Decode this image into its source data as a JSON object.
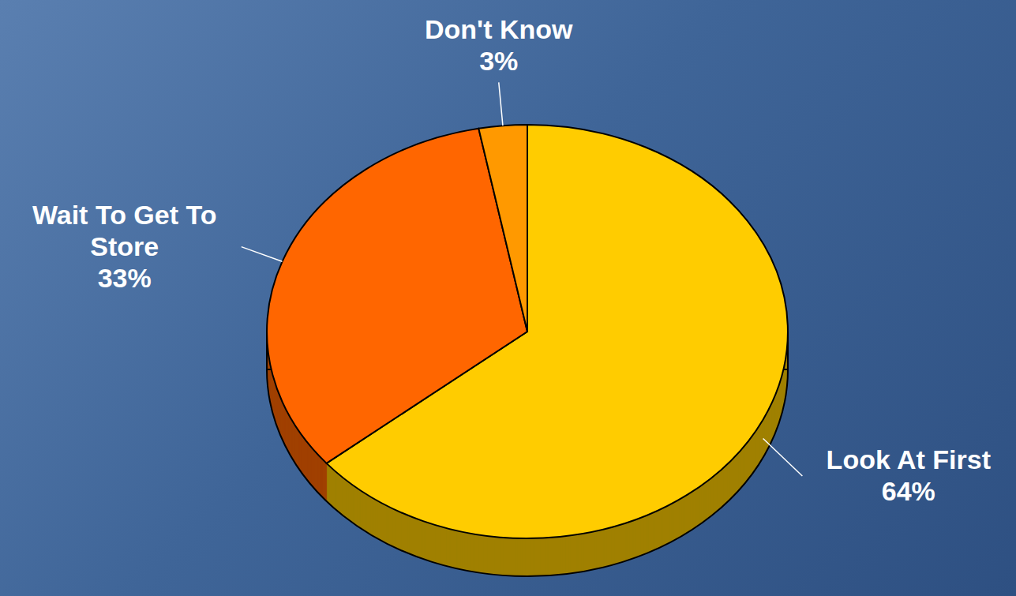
{
  "chart_data": {
    "type": "pie",
    "categories": [
      "Look At First",
      "Wait To Get To Store",
      "Don't Know"
    ],
    "values": [
      64,
      33,
      3
    ],
    "value_labels": [
      "64%",
      "33%",
      "3%"
    ],
    "colors": [
      "#ffcc00",
      "#ff6600",
      "#ff9900"
    ],
    "data_labels": true
  }
}
